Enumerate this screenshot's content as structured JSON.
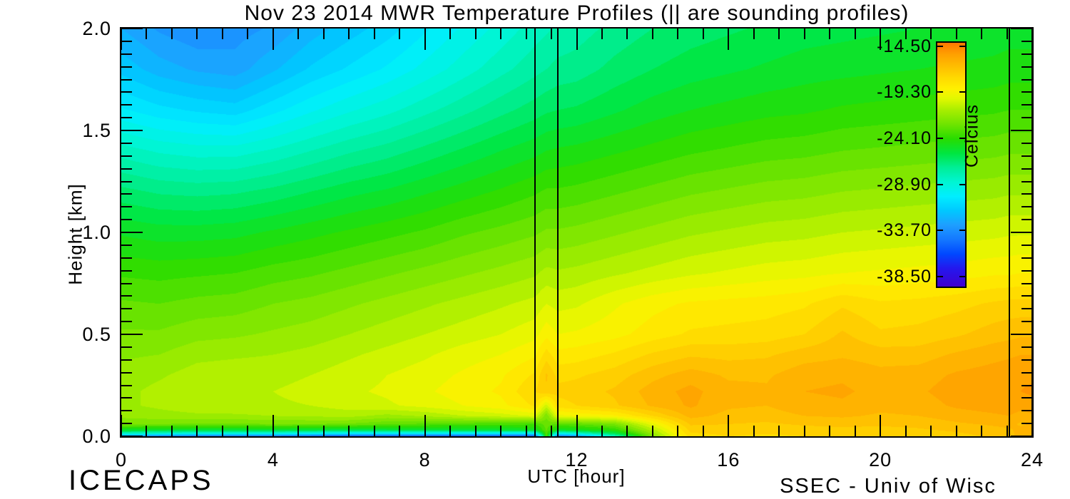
{
  "title": "Nov 23 2014 MWR Temperature Profiles (|| are sounding profiles)",
  "footer": {
    "left": "ICECAPS",
    "right": "SSEC - Univ of Wisc"
  },
  "chart_data": {
    "type": "heatmap",
    "title": "Nov 23 2014 MWR Temperature Profiles (|| are sounding profiles)",
    "xlabel": "UTC [hour]",
    "ylabel": "Height [km]",
    "xlim": [
      0,
      24
    ],
    "ylim": [
      0,
      2
    ],
    "x_ticks": [
      {
        "value": 0,
        "label": "0"
      },
      {
        "value": 4,
        "label": "4"
      },
      {
        "value": 8,
        "label": "8"
      },
      {
        "value": 12,
        "label": "12"
      },
      {
        "value": 16,
        "label": "16"
      },
      {
        "value": 20,
        "label": "20"
      },
      {
        "value": 24,
        "label": "24"
      }
    ],
    "y_ticks": [
      {
        "value": 0.0,
        "label": "0.0"
      },
      {
        "value": 0.5,
        "label": "0.5"
      },
      {
        "value": 1.0,
        "label": "1.0"
      },
      {
        "value": 1.5,
        "label": "1.5"
      },
      {
        "value": 2.0,
        "label": "2.0"
      }
    ],
    "colorbar": {
      "label": "Celcius",
      "tmax": -14.0,
      "tmin": -39.4,
      "ticks": [
        {
          "value": -14.5,
          "label": "-14.50"
        },
        {
          "value": -19.3,
          "label": "-19.30"
        },
        {
          "value": -24.1,
          "label": "-24.10"
        },
        {
          "value": -28.9,
          "label": "-28.90"
        },
        {
          "value": -33.7,
          "label": "-33.70"
        },
        {
          "value": -38.5,
          "label": "-38.50"
        }
      ]
    },
    "contour_interval_C": 0.6,
    "colormap_stops": [
      [
        -39.4,
        "#4000D0"
      ],
      [
        -37.5,
        "#2418EE"
      ],
      [
        -36.0,
        "#0048FF"
      ],
      [
        -34.5,
        "#1478FF"
      ],
      [
        -33.0,
        "#1E9EFF"
      ],
      [
        -31.5,
        "#00C8FF"
      ],
      [
        -30.0,
        "#00EEFF"
      ],
      [
        -28.5,
        "#00F5D2"
      ],
      [
        -27.0,
        "#00EE96"
      ],
      [
        -25.5,
        "#00E640"
      ],
      [
        -24.0,
        "#28DC00"
      ],
      [
        -22.5,
        "#6EE400"
      ],
      [
        -21.0,
        "#A8EE00"
      ],
      [
        -19.8,
        "#E2F800"
      ],
      [
        -18.8,
        "#FFF000"
      ],
      [
        -17.6,
        "#FFD800"
      ],
      [
        -16.4,
        "#FFBC00"
      ],
      [
        -15.2,
        "#FFA000"
      ],
      [
        -14.0,
        "#FF7800"
      ]
    ],
    "sounding_lines_utc": [
      10.9,
      11.5,
      23.4,
      24.0
    ],
    "x_hours": [
      0,
      1,
      2,
      3,
      4,
      5,
      6,
      7,
      8,
      9,
      10,
      10.9,
      11.2,
      11.5,
      12,
      13,
      14,
      15,
      16,
      17,
      18,
      19,
      20,
      21,
      22,
      23,
      23.4,
      23.7,
      24
    ],
    "z_km": [
      0,
      0.012,
      0.03,
      0.06,
      0.1,
      0.15,
      0.22,
      0.3,
      0.4,
      0.5,
      0.65,
      0.8,
      1.0,
      1.2,
      1.4,
      1.6,
      1.8,
      2.0
    ],
    "temperature_C": [
      [
        -34.0,
        -28.5,
        -25.0,
        -22.3,
        -21.5,
        -21.2,
        -21.3,
        -21.5,
        -21.8,
        -22.2,
        -22.8,
        -23.6,
        -24.8,
        -26.3,
        -28.0,
        -30.0,
        -31.5,
        -32.5
      ],
      [
        -34.5,
        -29.0,
        -25.2,
        -22.3,
        -21.3,
        -21.0,
        -20.9,
        -21.2,
        -21.7,
        -22.2,
        -22.9,
        -23.7,
        -25.0,
        -26.6,
        -28.4,
        -30.5,
        -32.2,
        -33.2
      ],
      [
        -35.0,
        -29.5,
        -25.4,
        -22.4,
        -21.2,
        -20.8,
        -20.6,
        -20.8,
        -21.3,
        -21.9,
        -22.7,
        -23.6,
        -25.0,
        -26.7,
        -28.6,
        -30.8,
        -32.6,
        -33.6
      ],
      [
        -35.0,
        -29.5,
        -25.4,
        -22.4,
        -21.2,
        -20.7,
        -20.5,
        -20.7,
        -21.2,
        -21.8,
        -22.6,
        -23.5,
        -24.9,
        -26.6,
        -28.6,
        -31.0,
        -32.8,
        -33.4
      ],
      [
        -35.0,
        -29.5,
        -25.3,
        -22.3,
        -21.1,
        -20.6,
        -20.5,
        -20.7,
        -21.1,
        -21.6,
        -22.3,
        -23.2,
        -24.6,
        -26.3,
        -28.2,
        -30.3,
        -32.0,
        -33.0
      ],
      [
        -35.5,
        -30.0,
        -25.5,
        -22.3,
        -21.0,
        -20.5,
        -20.3,
        -20.5,
        -20.9,
        -21.4,
        -22.1,
        -23.0,
        -24.3,
        -25.9,
        -27.7,
        -29.6,
        -31.2,
        -32.2
      ],
      [
        -36.0,
        -30.5,
        -25.8,
        -22.4,
        -20.9,
        -20.2,
        -20.0,
        -20.2,
        -20.6,
        -21.1,
        -21.8,
        -22.7,
        -24.0,
        -25.5,
        -27.2,
        -29.0,
        -30.6,
        -31.6
      ],
      [
        -36.0,
        -30.5,
        -25.6,
        -22.8,
        -21.3,
        -20.0,
        -19.8,
        -19.9,
        -20.3,
        -20.8,
        -21.5,
        -22.4,
        -23.7,
        -25.2,
        -26.8,
        -28.5,
        -30.0,
        -31.0
      ],
      [
        -36.0,
        -30.5,
        -25.5,
        -23.0,
        -21.0,
        -19.7,
        -19.4,
        -19.6,
        -20.0,
        -20.5,
        -21.2,
        -22.1,
        -23.4,
        -24.8,
        -26.3,
        -27.9,
        -29.3,
        -30.2
      ],
      [
        -36.0,
        -30.5,
        -25.4,
        -23.2,
        -20.5,
        -19.3,
        -19.0,
        -19.2,
        -19.6,
        -20.2,
        -20.9,
        -21.8,
        -23.0,
        -24.4,
        -25.8,
        -27.3,
        -28.6,
        -29.4
      ],
      [
        -36.0,
        -30.5,
        -25.2,
        -23.3,
        -20.2,
        -18.9,
        -18.6,
        -18.8,
        -19.3,
        -19.9,
        -20.6,
        -21.5,
        -22.7,
        -24.0,
        -25.3,
        -26.7,
        -27.9,
        -28.7
      ],
      [
        -36.0,
        -30.5,
        -25.0,
        -23.4,
        -19.8,
        -18.0,
        -17.5,
        -18.0,
        -18.8,
        -19.5,
        -20.3,
        -21.2,
        -22.4,
        -23.6,
        -24.9,
        -26.2,
        -27.3,
        -28.0
      ],
      [
        -23.2,
        -23.0,
        -22.8,
        -22.6,
        -22.2,
        -20.2,
        -17.0,
        -16.8,
        -17.8,
        -18.9,
        -19.9,
        -20.9,
        -22.2,
        -23.4,
        -24.7,
        -26.0,
        -27.1,
        -27.8
      ],
      [
        -35.0,
        -30.0,
        -25.0,
        -23.0,
        -19.5,
        -17.8,
        -17.3,
        -17.7,
        -18.5,
        -19.3,
        -20.1,
        -21.0,
        -22.2,
        -23.4,
        -24.6,
        -25.9,
        -26.9,
        -27.6
      ],
      [
        -34.0,
        -29.0,
        -24.8,
        -22.8,
        -19.2,
        -17.5,
        -17.2,
        -17.6,
        -18.4,
        -19.2,
        -20.0,
        -20.9,
        -22.1,
        -23.3,
        -24.5,
        -25.8,
        -26.8,
        -27.4
      ],
      [
        -28.0,
        -26.0,
        -24.0,
        -22.2,
        -18.8,
        -17.0,
        -16.8,
        -17.2,
        -18.0,
        -18.9,
        -19.4,
        -20.6,
        -21.8,
        -23.0,
        -24.2,
        -25.4,
        -26.3,
        -26.9
      ],
      [
        -22.0,
        -21.5,
        -20.8,
        -19.5,
        -17.5,
        -16.2,
        -16.0,
        -16.5,
        -17.4,
        -18.4,
        -18.9,
        -20.3,
        -21.5,
        -22.7,
        -23.9,
        -25.0,
        -25.9,
        -26.5
      ],
      [
        -17.8,
        -17.6,
        -17.3,
        -16.8,
        -16.1,
        -15.6,
        -15.5,
        -16.0,
        -17.0,
        -18.0,
        -18.6,
        -20.0,
        -21.2,
        -22.4,
        -23.6,
        -24.7,
        -25.6,
        -26.2
      ],
      [
        -17.5,
        -17.4,
        -17.2,
        -16.9,
        -16.5,
        -16.2,
        -16.1,
        -16.4,
        -17.1,
        -17.9,
        -18.5,
        -19.8,
        -21.0,
        -22.2,
        -23.4,
        -24.5,
        -25.4,
        -26.0
      ],
      [
        -17.6,
        -17.5,
        -17.3,
        -17.0,
        -16.6,
        -16.3,
        -16.2,
        -16.4,
        -17.0,
        -17.8,
        -18.4,
        -19.6,
        -20.8,
        -22.0,
        -23.2,
        -24.3,
        -25.2,
        -25.8
      ],
      [
        -17.5,
        -17.4,
        -17.2,
        -16.8,
        -16.3,
        -15.9,
        -15.7,
        -15.9,
        -16.6,
        -17.5,
        -18.2,
        -19.5,
        -20.7,
        -21.9,
        -23.1,
        -24.2,
        -25.0,
        -25.6
      ],
      [
        -17.4,
        -17.3,
        -17.1,
        -16.7,
        -16.2,
        -15.8,
        -15.6,
        -15.8,
        -16.4,
        -16.8,
        -17.6,
        -19.3,
        -20.5,
        -21.7,
        -22.9,
        -24.0,
        -24.9,
        -25.5
      ],
      [
        -17.4,
        -17.3,
        -17.1,
        -16.8,
        -16.4,
        -16.1,
        -15.9,
        -16.1,
        -16.6,
        -17.4,
        -18.0,
        -19.2,
        -20.4,
        -21.6,
        -22.8,
        -23.9,
        -24.8,
        -25.4
      ],
      [
        -17.3,
        -17.2,
        -17.0,
        -16.7,
        -16.3,
        -16.0,
        -15.8,
        -16.0,
        -16.6,
        -17.3,
        -17.9,
        -19.1,
        -20.3,
        -21.5,
        -22.7,
        -23.8,
        -24.7,
        -25.3
      ],
      [
        -17.1,
        -17.0,
        -16.8,
        -16.4,
        -16.0,
        -15.6,
        -15.4,
        -15.6,
        -16.2,
        -17.0,
        -17.7,
        -19.0,
        -20.2,
        -21.4,
        -22.6,
        -23.7,
        -24.6,
        -25.2
      ],
      [
        -16.8,
        -16.7,
        -16.5,
        -16.2,
        -15.8,
        -15.4,
        -15.2,
        -15.4,
        -15.9,
        -16.6,
        -17.4,
        -18.8,
        -20.1,
        -21.3,
        -22.5,
        -23.6,
        -24.5,
        -25.1
      ],
      [
        -16.7,
        -16.6,
        -16.4,
        -16.1,
        -15.7,
        -15.3,
        -15.1,
        -15.3,
        -15.8,
        -16.5,
        -17.3,
        -18.8,
        -20.0,
        -21.2,
        -22.4,
        -23.5,
        -24.4,
        -25.0
      ],
      [
        -15.8,
        -15.9,
        -16.1,
        -16.4,
        -16.0,
        -15.4,
        -15.1,
        -15.2,
        -15.7,
        -16.4,
        -17.3,
        -18.7,
        -20.0,
        -21.2,
        -22.4,
        -23.5,
        -24.4,
        -25.0
      ],
      [
        -16.0,
        -16.0,
        -16.1,
        -16.2,
        -15.8,
        -15.3,
        -15.0,
        -15.2,
        -15.7,
        -16.4,
        -17.3,
        -18.7,
        -20.0,
        -21.2,
        -22.4,
        -23.5,
        -24.4,
        -25.0
      ]
    ]
  }
}
